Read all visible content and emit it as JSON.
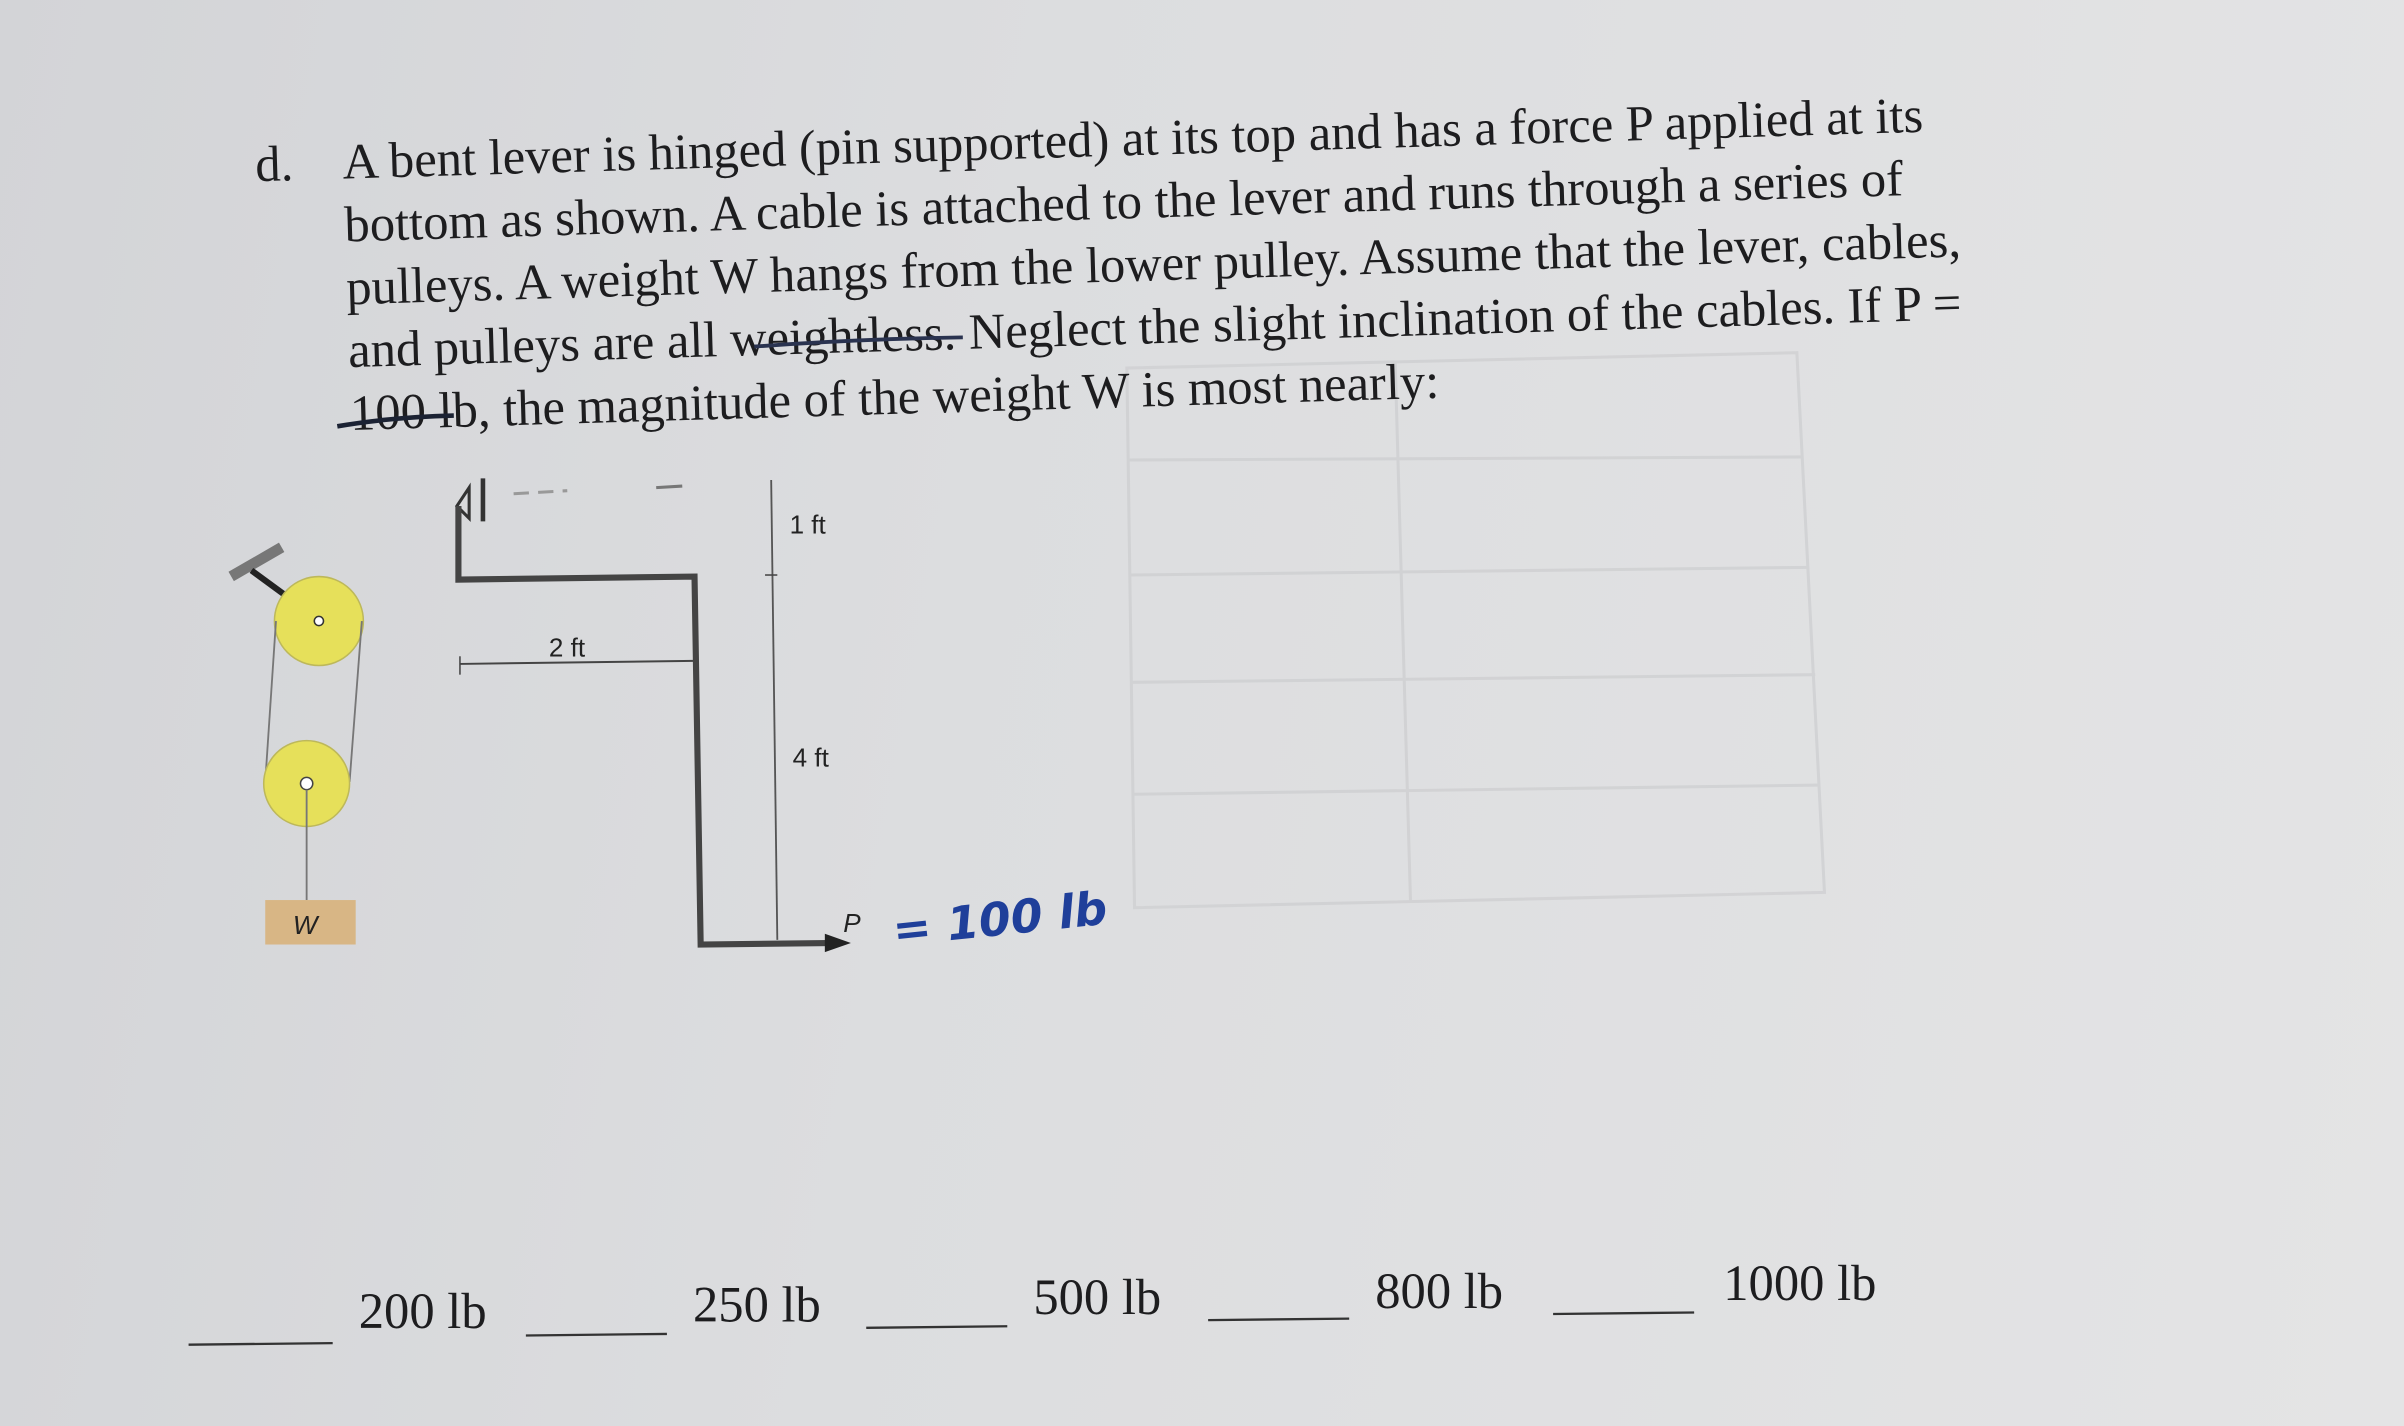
{
  "problem": {
    "label": "d.",
    "lines": [
      "A bent lever is hinged (pin supported) at its top and has a force P applied at its",
      "bottom as shown.  A cable is attached to the lever and runs through a series of",
      "pulleys.  A weight W hangs from the lower pulley.  Assume that the lever, cables,",
      "and pulleys are all weightless.  Neglect the slight inclination of the cables.  If P =",
      "100 lb, the magnitude of the weight W is most nearly:"
    ]
  },
  "diagram": {
    "dim_top": "1 ft",
    "dim_side": "4 ft",
    "dim_arm": "2 ft",
    "weight_label": "W",
    "force_label": "P",
    "handwritten_value": "= 100 lb",
    "pulley_color": "#e6e05a",
    "weight_color": "#d8b685"
  },
  "answers": [
    {
      "label": "200 lb"
    },
    {
      "label": "250 lb"
    },
    {
      "label": "500 lb"
    },
    {
      "label": "800 lb"
    },
    {
      "label": "1000 lb"
    }
  ]
}
